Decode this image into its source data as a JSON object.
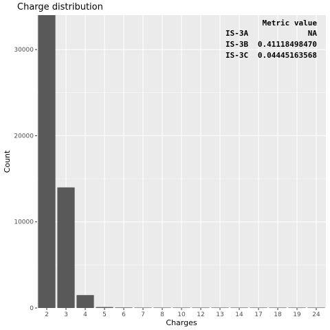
{
  "chart_data": {
    "type": "bar",
    "title": "Charge distribution",
    "xlabel": "Charges",
    "ylabel": "Count",
    "categories": [
      "2",
      "3",
      "4",
      "5",
      "6",
      "7",
      "8",
      "10",
      "12",
      "13",
      "14",
      "17",
      "18",
      "19",
      "24"
    ],
    "values": [
      34200,
      14000,
      1500,
      110,
      60,
      8,
      4,
      3,
      2,
      1,
      1,
      1,
      1,
      1,
      1
    ],
    "ylim": [
      0,
      34000
    ],
    "yticks": [
      0,
      10000,
      20000,
      30000
    ],
    "grid": true,
    "bar_color": "#595959",
    "panel_color": "#ebebeb",
    "gridline_color": "#ffffff",
    "metric_table": {
      "header": "Metric value",
      "rows": [
        {
          "metric": "IS-3A",
          "value": "NA"
        },
        {
          "metric": "IS-3B",
          "value": "0.41118498470"
        },
        {
          "metric": "IS-3C",
          "value": "0.04445163568"
        }
      ]
    }
  }
}
